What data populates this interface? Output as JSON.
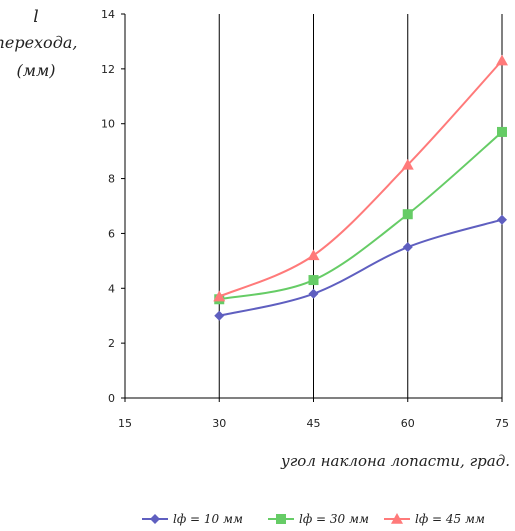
{
  "chart_data": {
    "type": "line",
    "ylabel_lines": [
      "l",
      "перехода,",
      "(мм)"
    ],
    "xlabel": "угол наклона лопасти, град.",
    "x_ticks": [
      15,
      30,
      45,
      60,
      75
    ],
    "y_ticks": [
      0,
      2,
      4,
      6,
      8,
      10,
      12,
      14
    ],
    "xlim": [
      15,
      75
    ],
    "ylim": [
      0,
      14
    ],
    "grid": "vertical",
    "legend_position": "bottom",
    "series": [
      {
        "name": "lф = 10 мм",
        "color": "#5f5fc0",
        "marker": "diamond",
        "x": [
          30,
          45,
          60,
          75
        ],
        "y": [
          3.0,
          3.8,
          5.5,
          6.5
        ]
      },
      {
        "name": "lф = 30 мм",
        "color": "#66cc66",
        "marker": "square",
        "x": [
          30,
          45,
          60,
          75
        ],
        "y": [
          3.6,
          4.3,
          6.7,
          9.7
        ]
      },
      {
        "name": "lф = 45 мм",
        "color": "#ff7a7a",
        "marker": "triangle",
        "x": [
          30,
          45,
          60,
          75
        ],
        "y": [
          3.7,
          5.2,
          8.5,
          12.3
        ]
      }
    ]
  }
}
